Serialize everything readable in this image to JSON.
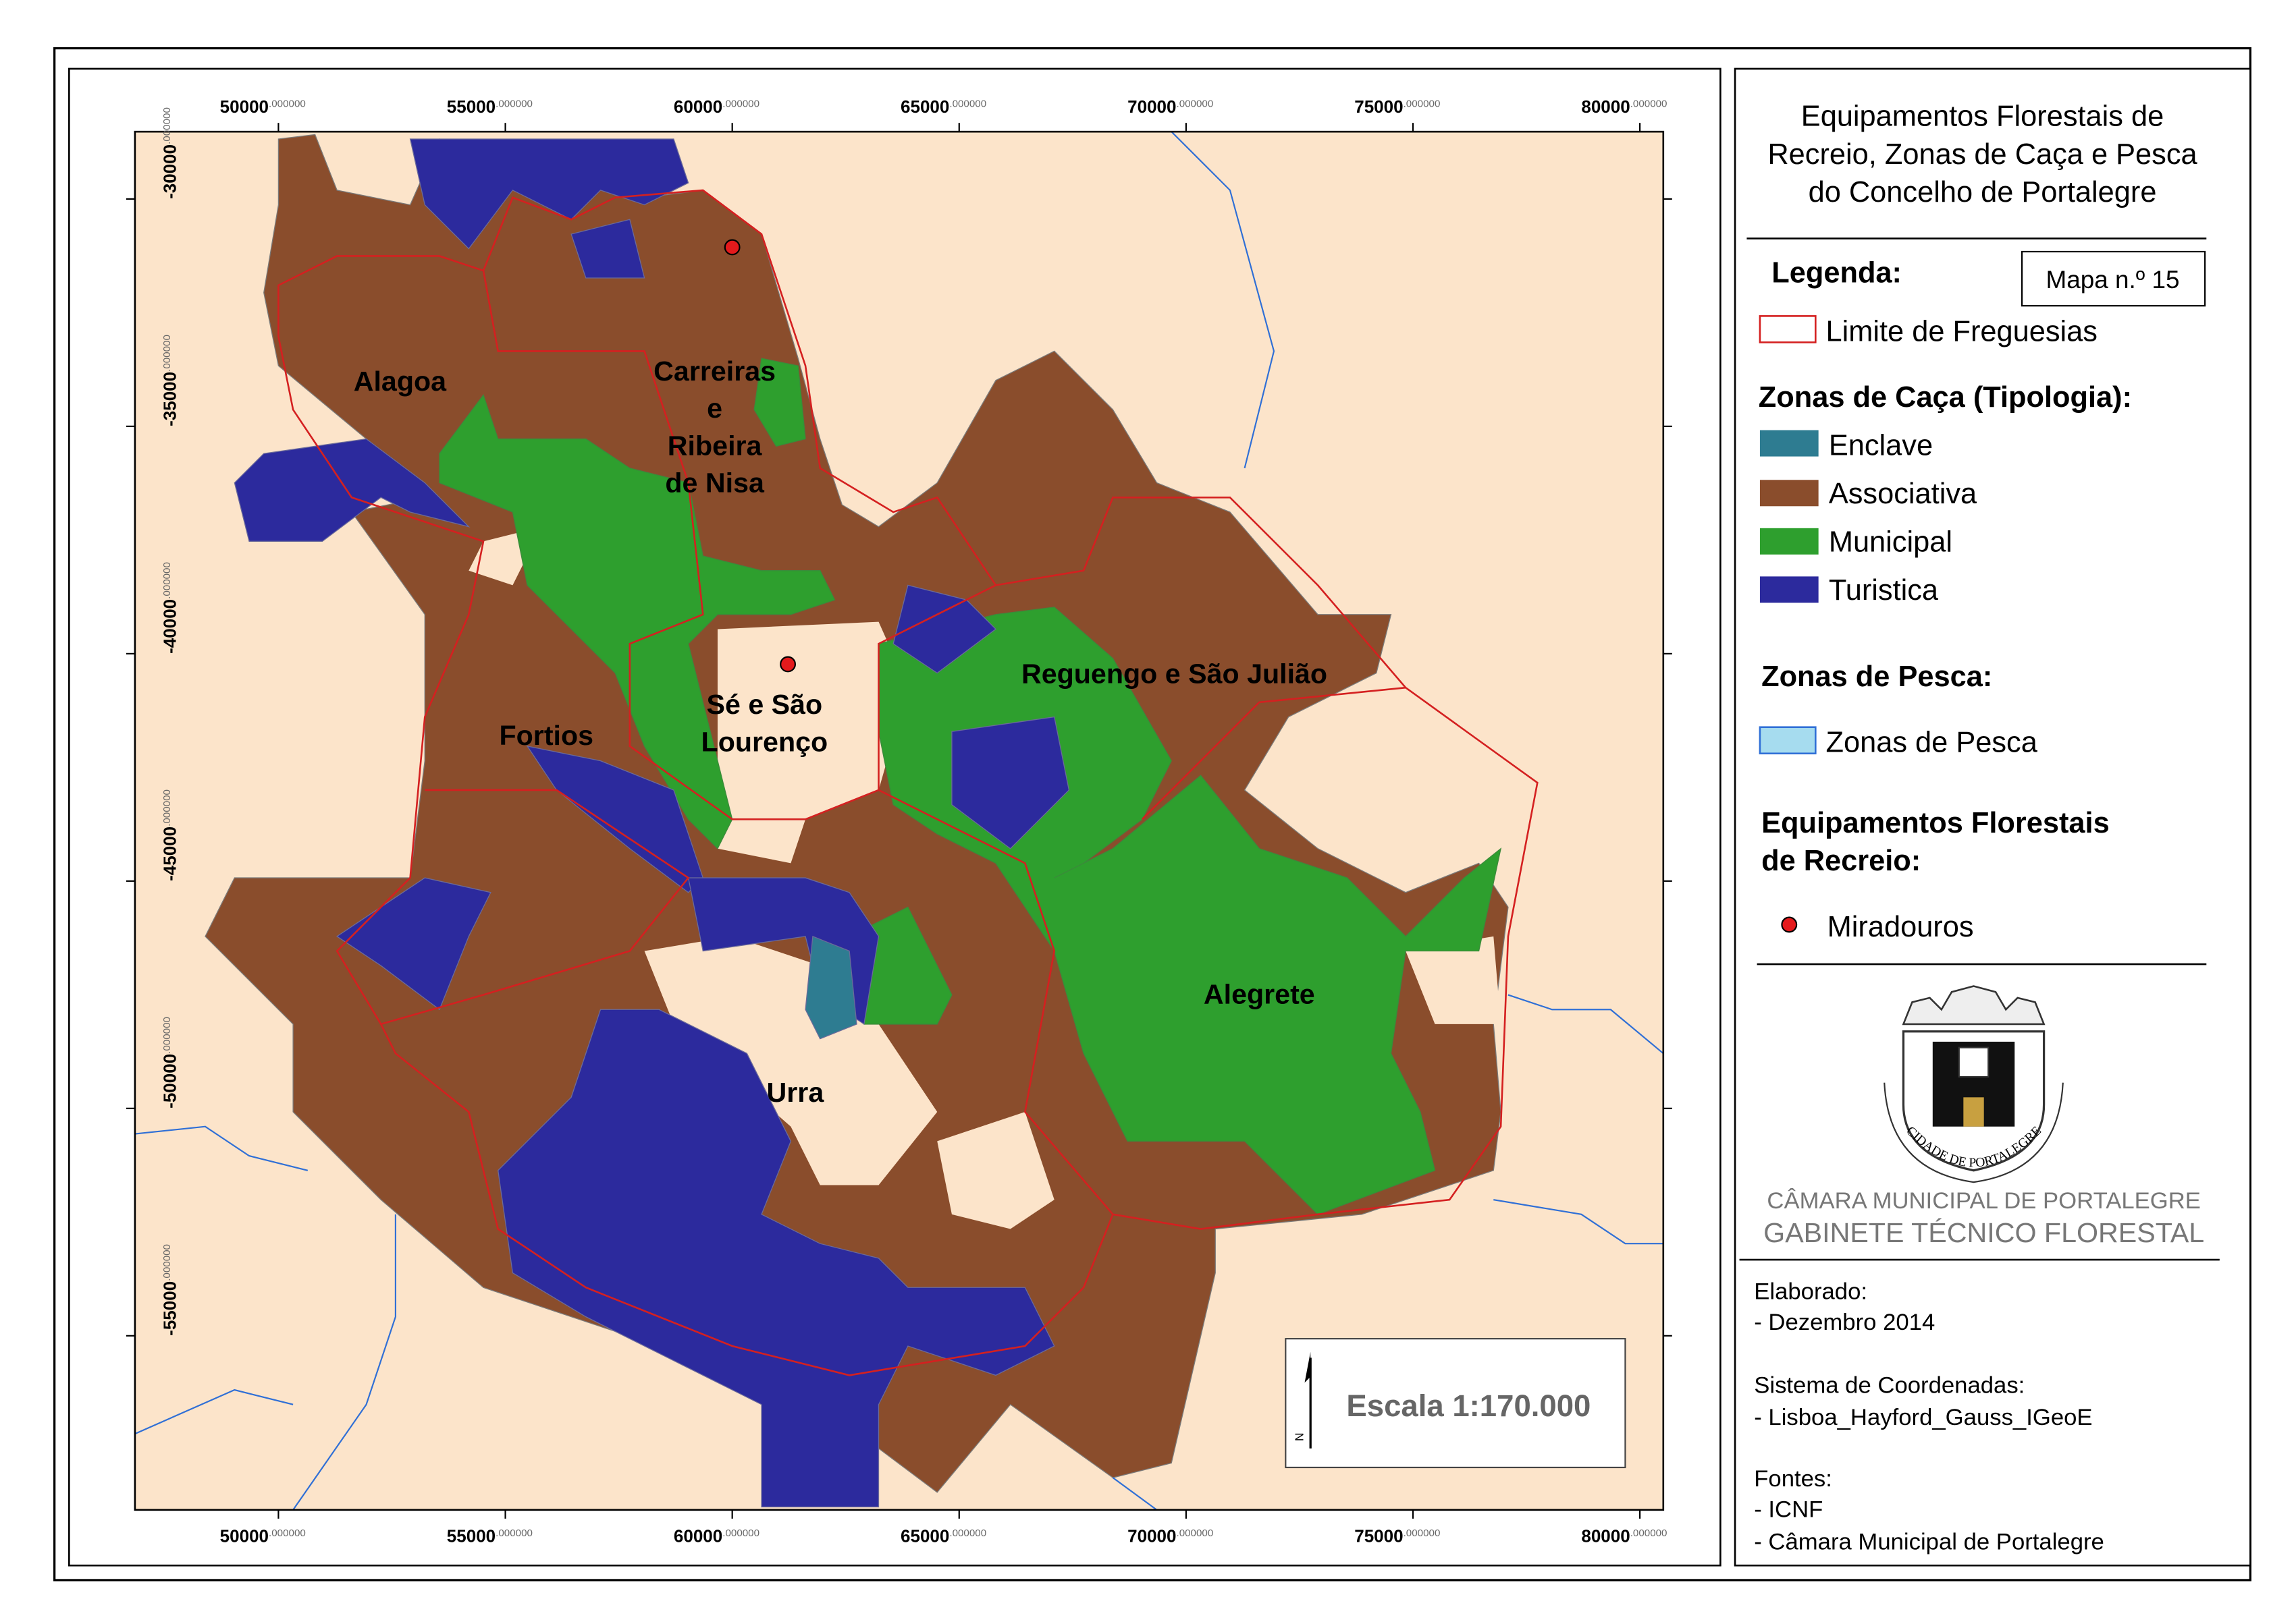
{
  "map": {
    "x_ticks": [
      {
        "main": "50000",
        "decimals": ".000000"
      },
      {
        "main": "55000",
        "decimals": ".000000"
      },
      {
        "main": "60000",
        "decimals": ".000000"
      },
      {
        "main": "65000",
        "decimals": ".000000"
      },
      {
        "main": "70000",
        "decimals": ".000000"
      },
      {
        "main": "75000",
        "decimals": ".000000"
      },
      {
        "main": "80000",
        "decimals": ".000000"
      }
    ],
    "y_ticks": [
      {
        "main": "-30000",
        "decimals": ".000000"
      },
      {
        "main": "-35000",
        "decimals": ".000000"
      },
      {
        "main": "-40000",
        "decimals": ".000000"
      },
      {
        "main": "-45000",
        "decimals": ".000000"
      },
      {
        "main": "-50000",
        "decimals": ".000000"
      },
      {
        "main": "-55000",
        "decimals": ".000000"
      }
    ],
    "places": [
      {
        "lines": [
          "Alagoa"
        ]
      },
      {
        "lines": [
          "Carreiras",
          "e",
          "Ribeira",
          "de Nisa"
        ]
      },
      {
        "lines": [
          "Sé e São",
          "Lourenço"
        ]
      },
      {
        "lines": [
          "Fortios"
        ]
      },
      {
        "lines": [
          "Reguengo e São Julião"
        ]
      },
      {
        "lines": [
          "Alegrete"
        ]
      },
      {
        "lines": [
          "Urra"
        ]
      }
    ],
    "scale": "Escala 1:170.000",
    "north": "N"
  },
  "legend": {
    "title": [
      "Equipamentos Florestais de",
      "Recreio, Zonas de Caça e Pesca",
      "do Concelho de Portalegre"
    ],
    "map_number": "Mapa n.º 15",
    "heading": "Legenda:",
    "boundary": "Limite de Freguesias",
    "hunting_heading": "Zonas de Caça (Tipologia):",
    "hunting": [
      "Enclave",
      "Associativa",
      "Municipal",
      "Turistica"
    ],
    "fishing_heading": "Zonas de Pesca:",
    "fishing": "Zonas de Pesca",
    "equipment_heading": [
      "Equipamentos Florestais",
      "de Recreio:"
    ],
    "equipment": "Miradouros"
  },
  "emblem": "CIDADE DE PORTALEGRE",
  "footer": {
    "org": "CÂMARA MUNICIPAL DE PORTALEGRE",
    "office": "GABINETE TÉCNICO FLORESTAL",
    "details": [
      "Elaborado:",
      "- Dezembro 2014",
      "Sistema de Coordenadas:",
      "- Lisboa_Hayford_Gauss_IGeoE",
      "Fontes:",
      "- ICNF",
      "- Câmara Municipal de Portalegre"
    ]
  }
}
